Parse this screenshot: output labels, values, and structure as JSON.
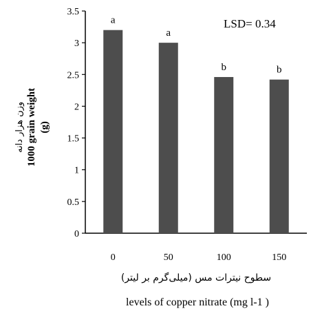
{
  "chart_data": {
    "type": "bar",
    "categories": [
      "0",
      "50",
      "100",
      "150"
    ],
    "values": [
      3.2,
      3.0,
      2.46,
      2.42
    ],
    "significance_letters": [
      "a",
      "a",
      "b",
      "b"
    ],
    "annotation": "LSD= 0.34",
    "ylabel_fa": "وزن هزار دانه",
    "ylabel_en": "1000 grain weight",
    "ylabel_unit": "(g)",
    "xlabel_fa": "سطوح نیترات مس (میلی‌گرم بر لیتر)",
    "xlabel_en": "levels of copper nitrate (mg l-1 )",
    "ylim": [
      0,
      3.5
    ],
    "yticks": [
      "0",
      "0.5",
      "1",
      "1.5",
      "2",
      "2.5",
      "3",
      "3.5"
    ],
    "bar_color": "#4d4d4d",
    "grid": false
  }
}
